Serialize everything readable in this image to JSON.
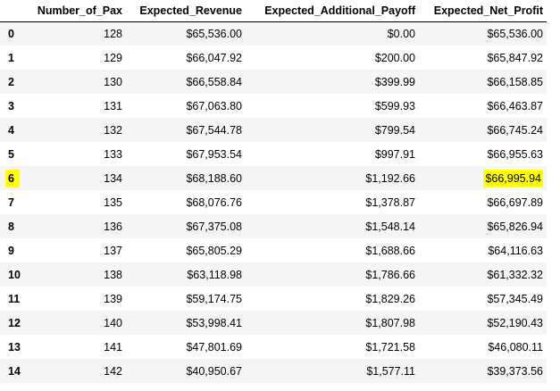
{
  "table": {
    "columns": [
      "",
      "Number_of_Pax",
      "Expected_Revenue",
      "Expected_Additional_Payoff",
      "Expected_Net_Profit"
    ],
    "highlight_color": "#ffff00",
    "rows": [
      {
        "index": "0",
        "pax": "128",
        "revenue": "$65,536.00",
        "payoff": "$0.00",
        "net_profit": "$65,536.00"
      },
      {
        "index": "1",
        "pax": "129",
        "revenue": "$66,047.92",
        "payoff": "$200.00",
        "net_profit": "$65,847.92"
      },
      {
        "index": "2",
        "pax": "130",
        "revenue": "$66,558.84",
        "payoff": "$399.99",
        "net_profit": "$66,158.85"
      },
      {
        "index": "3",
        "pax": "131",
        "revenue": "$67,063.80",
        "payoff": "$599.93",
        "net_profit": "$66,463.87"
      },
      {
        "index": "4",
        "pax": "132",
        "revenue": "$67,544.78",
        "payoff": "$799.54",
        "net_profit": "$66,745.24"
      },
      {
        "index": "5",
        "pax": "133",
        "revenue": "$67,953.54",
        "payoff": "$997.91",
        "net_profit": "$66,955.63"
      },
      {
        "index": "6",
        "pax": "134",
        "revenue": "$68,188.60",
        "payoff": "$1,192.66",
        "net_profit": "$66,995.94",
        "highlighted": true
      },
      {
        "index": "7",
        "pax": "135",
        "revenue": "$68,076.76",
        "payoff": "$1,378.87",
        "net_profit": "$66,697.89"
      },
      {
        "index": "8",
        "pax": "136",
        "revenue": "$67,375.08",
        "payoff": "$1,548.14",
        "net_profit": "$65,826.94"
      },
      {
        "index": "9",
        "pax": "137",
        "revenue": "$65,805.29",
        "payoff": "$1,688.66",
        "net_profit": "$64,116.63"
      },
      {
        "index": "10",
        "pax": "138",
        "revenue": "$63,118.98",
        "payoff": "$1,786.66",
        "net_profit": "$61,332.32"
      },
      {
        "index": "11",
        "pax": "139",
        "revenue": "$59,174.75",
        "payoff": "$1,829.26",
        "net_profit": "$57,345.49"
      },
      {
        "index": "12",
        "pax": "140",
        "revenue": "$53,998.41",
        "payoff": "$1,807.98",
        "net_profit": "$52,190.43"
      },
      {
        "index": "13",
        "pax": "141",
        "revenue": "$47,801.69",
        "payoff": "$1,721.58",
        "net_profit": "$46,080.11"
      },
      {
        "index": "14",
        "pax": "142",
        "revenue": "$40,950.67",
        "payoff": "$1,577.11",
        "net_profit": "$39,373.56"
      }
    ]
  }
}
